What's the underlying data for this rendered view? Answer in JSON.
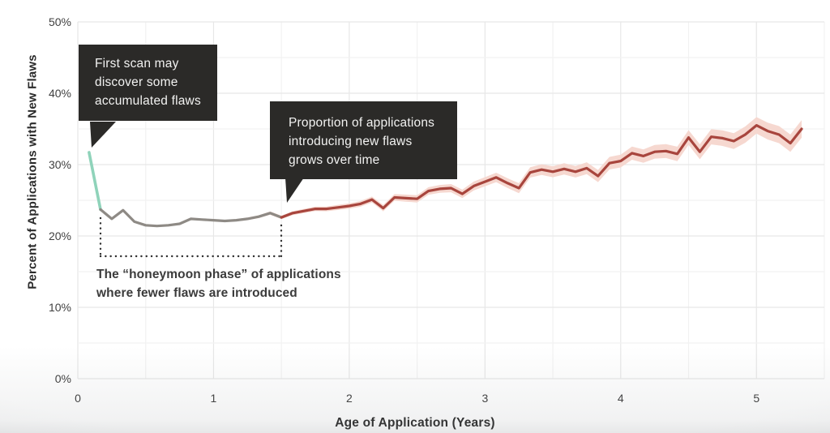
{
  "chart_data": {
    "type": "line",
    "title": "",
    "xlabel": "Age of Application (Years)",
    "ylabel": "Percent of Applications with New Flaws",
    "xlim": [
      0,
      5.5
    ],
    "ylim": [
      0,
      50
    ],
    "x_ticks": [
      0,
      1,
      2,
      3,
      4,
      5
    ],
    "x_minor_step": 0.5,
    "y_ticks": [
      0,
      10,
      20,
      30,
      40,
      50
    ],
    "y_tick_labels": [
      "0%",
      "10%",
      "20%",
      "30%",
      "40%",
      "50%"
    ],
    "y_minor_step": 5,
    "grid": true,
    "legend": "none",
    "x_unit": "years (points monthly)",
    "series": [
      {
        "name": "first-scan-segment",
        "color": "#8fd3ba",
        "point_range": [
          0,
          1
        ]
      },
      {
        "name": "honeymoon-segment",
        "color": "#8e8a85",
        "point_range": [
          1,
          17
        ]
      },
      {
        "name": "new-flaws-trend",
        "color": "#a8453d",
        "band_color": "#f6d8d0",
        "point_range": [
          17,
          63
        ]
      }
    ],
    "points_format": [
      "age_years",
      "percent_with_new_flaws",
      "band_halfwidth_pct"
    ],
    "points": [
      [
        0.083,
        31.7,
        0
      ],
      [
        0.167,
        23.7,
        0
      ],
      [
        0.25,
        22.4,
        0
      ],
      [
        0.333,
        23.6,
        0
      ],
      [
        0.417,
        22.0,
        0
      ],
      [
        0.5,
        21.5,
        0
      ],
      [
        0.583,
        21.4,
        0
      ],
      [
        0.667,
        21.5,
        0.03
      ],
      [
        0.75,
        21.7,
        0.05
      ],
      [
        0.833,
        22.4,
        0.07
      ],
      [
        0.917,
        22.3,
        0.1
      ],
      [
        1.0,
        22.2,
        0.12
      ],
      [
        1.083,
        22.1,
        0.14
      ],
      [
        1.167,
        22.2,
        0.16
      ],
      [
        1.25,
        22.4,
        0.18
      ],
      [
        1.333,
        22.7,
        0.2
      ],
      [
        1.417,
        23.2,
        0.23
      ],
      [
        1.5,
        22.6,
        0.25
      ],
      [
        1.583,
        23.2,
        0.27
      ],
      [
        1.667,
        23.5,
        0.29
      ],
      [
        1.75,
        23.8,
        0.31
      ],
      [
        1.833,
        23.8,
        0.33
      ],
      [
        1.917,
        24.0,
        0.36
      ],
      [
        2.0,
        24.2,
        0.38
      ],
      [
        2.083,
        24.5,
        0.4
      ],
      [
        2.167,
        25.1,
        0.42
      ],
      [
        2.25,
        23.9,
        0.44
      ],
      [
        2.333,
        25.4,
        0.46
      ],
      [
        2.417,
        25.3,
        0.49
      ],
      [
        2.5,
        25.2,
        0.51
      ],
      [
        2.583,
        26.3,
        0.53
      ],
      [
        2.667,
        26.6,
        0.55
      ],
      [
        2.75,
        26.7,
        0.57
      ],
      [
        2.833,
        25.9,
        0.59
      ],
      [
        2.917,
        27.0,
        0.62
      ],
      [
        3.0,
        27.6,
        0.64
      ],
      [
        3.083,
        28.2,
        0.66
      ],
      [
        3.167,
        27.4,
        0.68
      ],
      [
        3.25,
        26.7,
        0.7
      ],
      [
        3.333,
        28.9,
        0.72
      ],
      [
        3.417,
        29.3,
        0.75
      ],
      [
        3.5,
        29.0,
        0.77
      ],
      [
        3.583,
        29.4,
        0.79
      ],
      [
        3.667,
        29.0,
        0.81
      ],
      [
        3.75,
        29.5,
        0.83
      ],
      [
        3.833,
        28.4,
        0.85
      ],
      [
        3.917,
        30.2,
        0.88
      ],
      [
        4.0,
        30.5,
        0.9
      ],
      [
        4.083,
        31.6,
        0.92
      ],
      [
        4.167,
        31.2,
        0.94
      ],
      [
        4.25,
        31.8,
        0.96
      ],
      [
        4.333,
        31.9,
        0.98
      ],
      [
        4.417,
        31.5,
        1.01
      ],
      [
        4.5,
        33.8,
        1.03
      ],
      [
        4.583,
        31.8,
        1.05
      ],
      [
        4.667,
        33.9,
        1.07
      ],
      [
        4.75,
        33.7,
        1.09
      ],
      [
        4.833,
        33.3,
        1.11
      ],
      [
        4.917,
        34.2,
        1.14
      ],
      [
        5.0,
        35.5,
        1.16
      ],
      [
        5.083,
        34.7,
        1.18
      ],
      [
        5.167,
        34.2,
        1.2
      ],
      [
        5.25,
        33.0,
        1.22
      ],
      [
        5.333,
        35.0,
        1.24
      ]
    ]
  },
  "annotations": {
    "callouts": [
      {
        "name": "first-scan-callout",
        "lines": [
          "First scan may",
          "discover some",
          "accumulated flaws"
        ]
      },
      {
        "name": "growth-callout",
        "lines": [
          "Proportion of applications",
          "introducing new flaws",
          "grows over time"
        ]
      }
    ],
    "honeymoon": {
      "lines": [
        "The “honeymoon phase” of applications",
        "where fewer flaws are introduced"
      ],
      "bracket_x_years": [
        0.17,
        1.5
      ],
      "bracket_style": "dotted"
    }
  },
  "colors": {
    "background": "#ffffff",
    "grid_major": "#e7e7e7",
    "grid_minor": "#f2f2f2",
    "axis_text": "#404040",
    "axis_title": "#2b2b2b",
    "teal_segment": "#8fd3ba",
    "gray_segment": "#8e8a85",
    "red_segment": "#a8453d",
    "band": "#f6d8d0",
    "callout_bg": "#2b2a28",
    "callout_text": "#f2f2f1",
    "honeymoon_text": "#3b3b3b",
    "bracket": "#2f2f2f"
  }
}
